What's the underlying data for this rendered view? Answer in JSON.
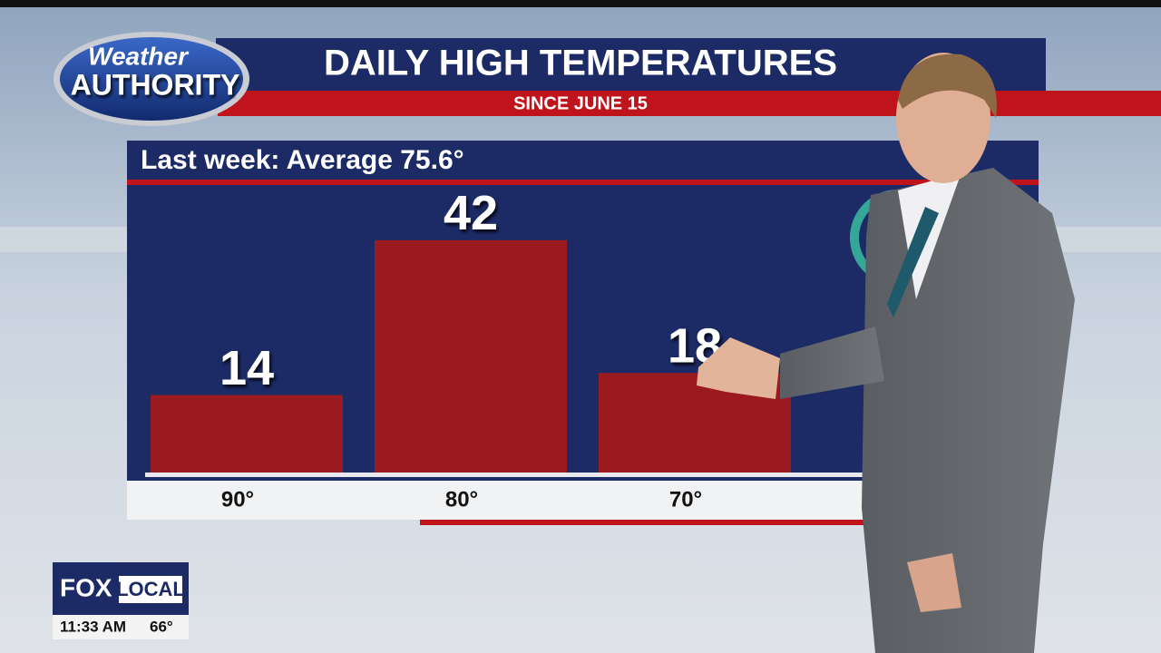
{
  "chart_data": {
    "type": "bar",
    "title": "DAILY HIGH TEMPERATURES",
    "subtitle": "SINCE JUNE 15",
    "annotation": "Last week: Average 75.6°",
    "categories": [
      "90°",
      "80°",
      "70°"
    ],
    "values": [
      14,
      42,
      18
    ],
    "color": "#9b1a1f"
  },
  "branding": {
    "logo_top": "Weather",
    "logo_bottom": "AUTHORITY",
    "station": "FOX",
    "station_sub": "LOCAL",
    "time": "11:33 AM",
    "temperature": "66°"
  }
}
